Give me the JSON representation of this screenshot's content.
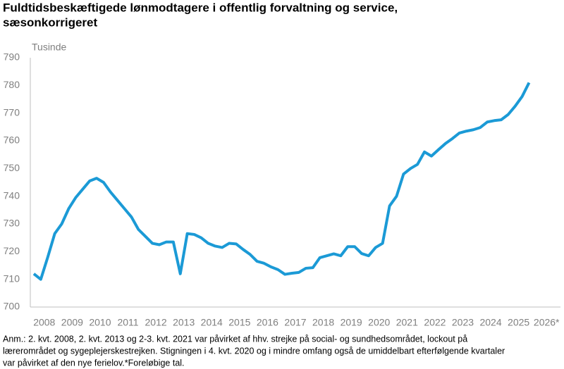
{
  "chart_data": {
    "type": "line",
    "title": [
      "Fuldtidsbeskæftigede lønmodtagere i offentlig forvaltning og service,",
      "sæsonkorrigeret"
    ],
    "y_axis_label": "Tusinde",
    "x": [
      2008.125,
      2008.375,
      2008.625,
      2008.875,
      2009.125,
      2009.375,
      2009.625,
      2009.875,
      2010.125,
      2010.375,
      2010.625,
      2010.875,
      2011.125,
      2011.375,
      2011.625,
      2011.875,
      2012.125,
      2012.375,
      2012.625,
      2012.875,
      2013.125,
      2013.375,
      2013.625,
      2013.875,
      2014.125,
      2014.375,
      2014.625,
      2014.875,
      2015.125,
      2015.375,
      2015.625,
      2015.875,
      2016.125,
      2016.375,
      2016.625,
      2016.875,
      2017.125,
      2017.375,
      2017.625,
      2017.875,
      2018.125,
      2018.375,
      2018.625,
      2018.875,
      2019.125,
      2019.375,
      2019.625,
      2019.875,
      2020.125,
      2020.375,
      2020.625,
      2020.875,
      2021.125,
      2021.375,
      2021.625,
      2021.875,
      2022.125,
      2022.375,
      2022.625,
      2022.875,
      2023.125,
      2023.375,
      2023.625,
      2023.875,
      2024.125,
      2024.375,
      2024.625,
      2024.875,
      2025.125,
      2025.375,
      2025.625,
      2025.875
    ],
    "series": [
      {
        "color": "#1b9ad6",
        "values": [
          712,
          710,
          718,
          726.5,
          730,
          735.5,
          739.5,
          742.5,
          745.5,
          746.5,
          745,
          741.5,
          738.5,
          735.5,
          732.5,
          728,
          725.5,
          723,
          722.5,
          723.5,
          723.5,
          712,
          726.5,
          726.2,
          725,
          723,
          722,
          721.5,
          723,
          722.8,
          720.8,
          719,
          716.5,
          715.8,
          714.5,
          713.5,
          711.8,
          712.2,
          712.5,
          714,
          714.2,
          717.8,
          718.5,
          719.2,
          718.5,
          721.8,
          721.8,
          719.3,
          718.5,
          721.5,
          723,
          736.5,
          740,
          748,
          750,
          751.5,
          756,
          754.5,
          756.8,
          759,
          760.8,
          762.8,
          763.5,
          764,
          764.8,
          766.8,
          767.3,
          767.6,
          769.5,
          772.5,
          776,
          781
        ]
      }
    ],
    "xlim": [
      2008,
      2027
    ],
    "xticks": [
      {
        "value": 2008.5,
        "label": "2008"
      },
      {
        "value": 2009.5,
        "label": "2009"
      },
      {
        "value": 2010.5,
        "label": "2010"
      },
      {
        "value": 2011.5,
        "label": "2011"
      },
      {
        "value": 2012.5,
        "label": "2012"
      },
      {
        "value": 2013.5,
        "label": "2013"
      },
      {
        "value": 2014.5,
        "label": "2014"
      },
      {
        "value": 2015.5,
        "label": "2015"
      },
      {
        "value": 2016.5,
        "label": "2016"
      },
      {
        "value": 2017.5,
        "label": "2017"
      },
      {
        "value": 2018.5,
        "label": "2018"
      },
      {
        "value": 2019.5,
        "label": "2019"
      },
      {
        "value": 2020.5,
        "label": "2020"
      },
      {
        "value": 2021.5,
        "label": "2021"
      },
      {
        "value": 2022.5,
        "label": "2022"
      },
      {
        "value": 2023.5,
        "label": "2023"
      },
      {
        "value": 2024.5,
        "label": "2024"
      },
      {
        "value": 2025.5,
        "label": "2025"
      },
      {
        "value": 2026.5,
        "label": "2026*"
      }
    ],
    "ylim": [
      700,
      790
    ],
    "yticks": [
      700,
      710,
      720,
      730,
      740,
      750,
      760,
      770,
      780,
      790
    ],
    "grid": false,
    "note": [
      "Anm.: 2. kvt. 2008, 2. kvt. 2013 og 2-3. kvt. 2021 var påvirket af hhv. strejke på social- og sundhedsområdet, lockout på",
      "lærerområdet og sygeplejerskestrejken. Stigningen i 4. kvt. 2020 og i mindre omfang også de umiddelbart efterfølgende kvartaler",
      "var påvirket af den nye ferielov.*Foreløbige tal."
    ]
  }
}
